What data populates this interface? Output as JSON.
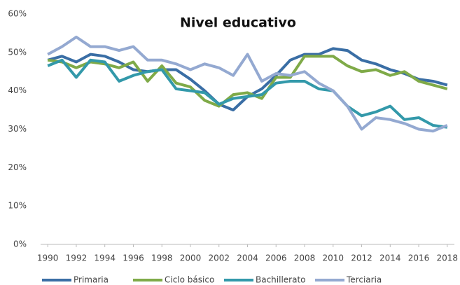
{
  "chart_data": {
    "type": "line",
    "title": "Nivel educativo",
    "x": [
      1990,
      1991,
      1992,
      1993,
      1994,
      1995,
      1996,
      1997,
      1998,
      1999,
      2000,
      2001,
      2002,
      2003,
      2004,
      2005,
      2006,
      2007,
      2008,
      2009,
      2010,
      2011,
      2012,
      2013,
      2014,
      2015,
      2016,
      2017,
      2018
    ],
    "series": [
      {
        "name": "Primaria",
        "color": "#3a6ea5",
        "values": [
          48,
          49,
          47.5,
          49.5,
          49,
          47.5,
          45.5,
          45,
          45.5,
          45.5,
          43,
          40,
          36.5,
          35,
          38.5,
          40.5,
          44,
          48,
          49.5,
          49.5,
          51,
          50.5,
          48,
          47,
          45.5,
          44.5,
          43,
          42.5,
          41.5
        ]
      },
      {
        "name": "Ciclo básico",
        "color": "#7faa48",
        "values": [
          48,
          47.5,
          46,
          47.5,
          47,
          46,
          47.5,
          42.5,
          46.5,
          42,
          41,
          37.5,
          36,
          39,
          39.5,
          38,
          43.5,
          43.5,
          49,
          49,
          49,
          46.5,
          45,
          45.5,
          44,
          45,
          42.5,
          41.5,
          40.5
        ]
      },
      {
        "name": "Bachillerato",
        "color": "#3399aa",
        "values": [
          46.5,
          48,
          43.5,
          48,
          47.5,
          42.5,
          44,
          45,
          45.5,
          40.5,
          40,
          39.5,
          36.5,
          38,
          38.5,
          39,
          42,
          42.5,
          42.5,
          40.5,
          40,
          36,
          33.5,
          34.5,
          36,
          32.5,
          33,
          31,
          30.5
        ]
      },
      {
        "name": "Terciaria",
        "color": "#94a9d1",
        "values": [
          49.5,
          51.5,
          54,
          51.5,
          51.5,
          50.5,
          51.5,
          48,
          48,
          47,
          45.5,
          47,
          46,
          44,
          49.5,
          42.5,
          44.5,
          44,
          45,
          42,
          40,
          36,
          30,
          33,
          32.5,
          31.5,
          30,
          29.5,
          31
        ]
      }
    ],
    "xlim": [
      1989.5,
      2018.5
    ],
    "xticks": [
      1990,
      1992,
      1994,
      1996,
      1998,
      2000,
      2002,
      2004,
      2006,
      2008,
      2010,
      2012,
      2014,
      2016,
      2018
    ],
    "ylim": [
      0,
      60
    ],
    "yticks": [
      {
        "value": 0,
        "label": "0%"
      },
      {
        "value": 10,
        "label": "10%"
      },
      {
        "value": 20,
        "label": "20%"
      },
      {
        "value": 30,
        "label": "30%"
      },
      {
        "value": 40,
        "label": "40%"
      },
      {
        "value": 50,
        "label": "50%"
      },
      {
        "value": 60,
        "label": "60%"
      }
    ],
    "grid": false,
    "legend": "bottom"
  }
}
